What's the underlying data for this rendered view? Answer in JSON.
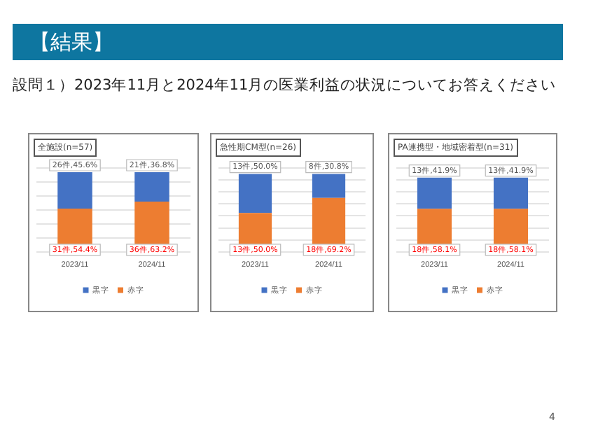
{
  "chart_data": [
    {
      "type": "bar",
      "title": "全施設(n=57)",
      "annotations": [
        "【結果】",
        "設問１）2023年11月と2024年11月の医業利益の状況についてお答えください",
        "4"
      ],
      "categories": [
        "2023/11",
        "2024/11"
      ],
      "stacked": true,
      "series": [
        {
          "name": "赤字",
          "color": "#ed7d31",
          "values": [
            31,
            36
          ],
          "value_labels": [
            "31件,54.4%",
            "36件,63.2%"
          ]
        },
        {
          "name": "黒字",
          "color": "#4472c4",
          "values": [
            26,
            21
          ],
          "value_labels": [
            "26件,45.6%",
            "21件,36.8%"
          ]
        }
      ],
      "ylim": [
        0,
        60
      ],
      "yticks": [
        {
          "value": 0,
          "label": null
        },
        {
          "value": 10,
          "label": null
        },
        {
          "value": 20,
          "label": null
        },
        {
          "value": 30,
          "label": null
        },
        {
          "value": 40,
          "label": null
        },
        {
          "value": 50,
          "label": null
        },
        {
          "value": 60,
          "label": null
        }
      ],
      "grid": "y",
      "tick_labels": "x",
      "legend": "bottom"
    },
    {
      "type": "bar",
      "title": "急性期CM型(n=26)",
      "categories": [
        "2023/11",
        "2024/11"
      ],
      "stacked": true,
      "series": [
        {
          "name": "赤字",
          "color": "#ed7d31",
          "values": [
            13,
            18
          ],
          "value_labels": [
            "13件,50.0%",
            "18件,69.2%"
          ]
        },
        {
          "name": "黒字",
          "color": "#4472c4",
          "values": [
            13,
            8
          ],
          "value_labels": [
            "13件,50.0%",
            "8件,30.8%"
          ]
        }
      ],
      "ylim": [
        0,
        28
      ],
      "yticks": [
        {
          "value": 0,
          "label": null
        },
        {
          "value": 4,
          "label": null
        },
        {
          "value": 8,
          "label": null
        },
        {
          "value": 12,
          "label": null
        },
        {
          "value": 16,
          "label": null
        },
        {
          "value": 20,
          "label": null
        },
        {
          "value": 24,
          "label": null
        },
        {
          "value": 28,
          "label": null
        }
      ],
      "grid": "y",
      "tick_labels": "x",
      "legend": "bottom"
    },
    {
      "type": "bar",
      "title": "PA連携型・地域密着型(n=31)",
      "categories": [
        "2023/11",
        "2024/11"
      ],
      "stacked": true,
      "series": [
        {
          "name": "赤字",
          "color": "#ed7d31",
          "values": [
            18,
            18
          ],
          "value_labels": [
            "18件,58.1%",
            "18件,58.1%"
          ]
        },
        {
          "name": "黒字",
          "color": "#4472c4",
          "values": [
            13,
            13
          ],
          "value_labels": [
            "13件,41.9%",
            "13件,41.9%"
          ]
        }
      ],
      "ylim": [
        0,
        35
      ],
      "yticks": [
        {
          "value": 0,
          "label": null
        },
        {
          "value": 5,
          "label": null
        },
        {
          "value": 10,
          "label": null
        },
        {
          "value": 15,
          "label": null
        },
        {
          "value": 20,
          "label": null
        },
        {
          "value": 25,
          "label": null
        },
        {
          "value": 30,
          "label": null
        },
        {
          "value": 35,
          "label": null
        }
      ],
      "grid": "y",
      "tick_labels": "x",
      "legend": "bottom"
    }
  ]
}
